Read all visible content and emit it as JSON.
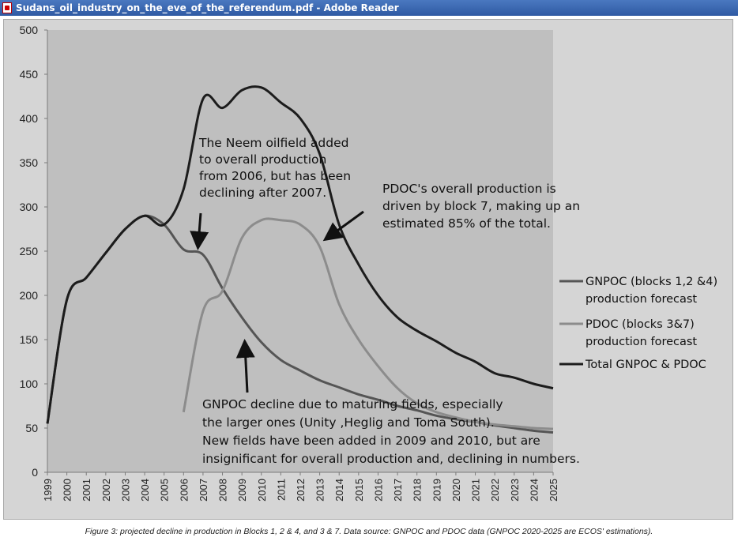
{
  "window": {
    "title": "Sudans_oil_industry_on_the_eve_of_the_referendum.pdf - Adobe Reader"
  },
  "caption": "Figure 3: projected decline in production in Blocks 1, 2 & 4, and 3 & 7. Data source: GNPOC and PDOC data (GNPOC 2020-2025 are ECOS' estimations).",
  "chart_data": {
    "type": "line",
    "x": [
      1999,
      2000,
      2001,
      2002,
      2003,
      2004,
      2005,
      2006,
      2007,
      2008,
      2009,
      2010,
      2011,
      2012,
      2013,
      2014,
      2015,
      2016,
      2017,
      2018,
      2019,
      2020,
      2021,
      2022,
      2023,
      2024,
      2025
    ],
    "x_tick_labels": [
      "1999",
      "2000",
      "2001",
      "2002",
      "2003",
      "2004",
      "2005",
      "2006",
      "2007",
      "2008",
      "2009",
      "2010",
      "2011",
      "2012",
      "2013",
      "2014",
      "2015",
      "2016",
      "2017",
      "2018",
      "2019",
      "2020",
      "2021",
      "2022",
      "2023",
      "2024",
      "2025"
    ],
    "ylim": [
      0,
      500
    ],
    "y_ticks": [
      "0",
      "50",
      "100",
      "150",
      "200",
      "250",
      "300",
      "350",
      "400",
      "450",
      "500"
    ],
    "grid": false,
    "legend_position": "right",
    "series": [
      {
        "name": "GNPOC (blocks 1,2 &4) production forecast",
        "legend_lines": [
          "GNPOC (blocks 1,2 &4)",
          "production forecast"
        ],
        "color": "#555555",
        "x": [
          1999,
          2000,
          2001,
          2002,
          2003,
          2004,
          2005,
          2006,
          2007,
          2008,
          2009,
          2010,
          2011,
          2012,
          2013,
          2014,
          2015,
          2016,
          2017,
          2018,
          2019,
          2020,
          2021,
          2022,
          2023,
          2024,
          2025
        ],
        "values": [
          55,
          195,
          220,
          248,
          275,
          290,
          280,
          252,
          246,
          208,
          175,
          147,
          127,
          115,
          104,
          96,
          88,
          82,
          75,
          70,
          64,
          60,
          57,
          53,
          50,
          47,
          45
        ]
      },
      {
        "name": "PDOC (blocks 3&7) production forecast",
        "legend_lines": [
          "PDOC (blocks 3&7)",
          "production forecast"
        ],
        "color": "#8c8c8c",
        "x": [
          2006,
          2007,
          2008,
          2009,
          2010,
          2011,
          2012,
          2013,
          2014,
          2015,
          2016,
          2017,
          2018,
          2019,
          2020,
          2021,
          2022,
          2023,
          2024,
          2025
        ],
        "values": [
          68,
          182,
          205,
          265,
          285,
          285,
          280,
          255,
          190,
          150,
          120,
          95,
          78,
          68,
          62,
          57,
          54,
          52,
          50,
          49
        ]
      },
      {
        "name": "Total GNPOC & PDOC",
        "legend_lines": [
          "Total GNPOC & PDOC"
        ],
        "color": "#1c1c1c",
        "x": [
          1999,
          2000,
          2001,
          2002,
          2003,
          2004,
          2005,
          2006,
          2007,
          2008,
          2009,
          2010,
          2011,
          2012,
          2013,
          2014,
          2015,
          2016,
          2017,
          2018,
          2019,
          2020,
          2021,
          2022,
          2023,
          2024,
          2025
        ],
        "values": [
          55,
          195,
          220,
          248,
          275,
          290,
          280,
          320,
          422,
          412,
          432,
          435,
          418,
          400,
          360,
          280,
          235,
          200,
          175,
          160,
          148,
          135,
          125,
          112,
          107,
          100,
          95
        ]
      }
    ],
    "annotations": [
      {
        "lines": [
          "The Neem oilfield added",
          "to overall production",
          "from 2006, but has been",
          "declining after 2007."
        ]
      },
      {
        "lines": [
          "PDOC's overall production is",
          "driven by block 7, making up an",
          "estimated 85% of the total."
        ]
      },
      {
        "lines": [
          "GNPOC decline due to maturing fields, especially",
          "the larger ones (Unity ,Heglig and Toma South).",
          "New fields have been added in 2009 and 2010, but are",
          "insignificant for overall production and, declining in numbers."
        ]
      }
    ]
  }
}
